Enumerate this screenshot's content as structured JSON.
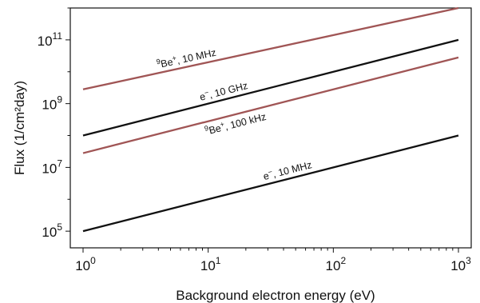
{
  "chart_data": {
    "type": "line",
    "title": "",
    "xlabel": "Background electron energy (eV)",
    "ylabel": "Flux (1/cm²day)",
    "xscale": "log",
    "yscale": "log",
    "xlim": [
      1,
      1000
    ],
    "ylim": [
      30000,
      1000000000000
    ],
    "grid": false,
    "legend": "none",
    "x_ticks": [
      {
        "value": 1,
        "base": "10",
        "exp": "0"
      },
      {
        "value": 10,
        "base": "10",
        "exp": "1"
      },
      {
        "value": 100,
        "base": "10",
        "exp": "2"
      },
      {
        "value": 1000,
        "base": "10",
        "exp": "3"
      }
    ],
    "y_ticks": [
      {
        "value": 100000,
        "base": "10",
        "exp": "5"
      },
      {
        "value": 10000000,
        "base": "10",
        "exp": "7"
      },
      {
        "value": 1000000000,
        "base": "10",
        "exp": "9"
      },
      {
        "value": 100000000000,
        "base": "10",
        "exp": "11"
      }
    ],
    "series": [
      {
        "label_pre": "9",
        "label_main": "Be",
        "label_sup": "+",
        "label_post": ", 10 MHz",
        "color": "#a05555",
        "x": [
          1,
          1000
        ],
        "y": [
          2800000000,
          1000000000000
        ]
      },
      {
        "label_pre": "",
        "label_main": "e",
        "label_sup": "−",
        "label_post": ", 10 GHz",
        "color": "#111111",
        "x": [
          1,
          1000
        ],
        "y": [
          100000000,
          100000000000
        ]
      },
      {
        "label_pre": "9",
        "label_main": "Be",
        "label_sup": "+",
        "label_post": ", 100 kHz",
        "color": "#a05555",
        "x": [
          1,
          1000
        ],
        "y": [
          28000000,
          28000000000
        ]
      },
      {
        "label_pre": "",
        "label_main": "e",
        "label_sup": "−",
        "label_post": ", 10 MHz",
        "color": "#111111",
        "x": [
          1,
          1000
        ],
        "y": [
          100000,
          100000000
        ]
      }
    ]
  }
}
